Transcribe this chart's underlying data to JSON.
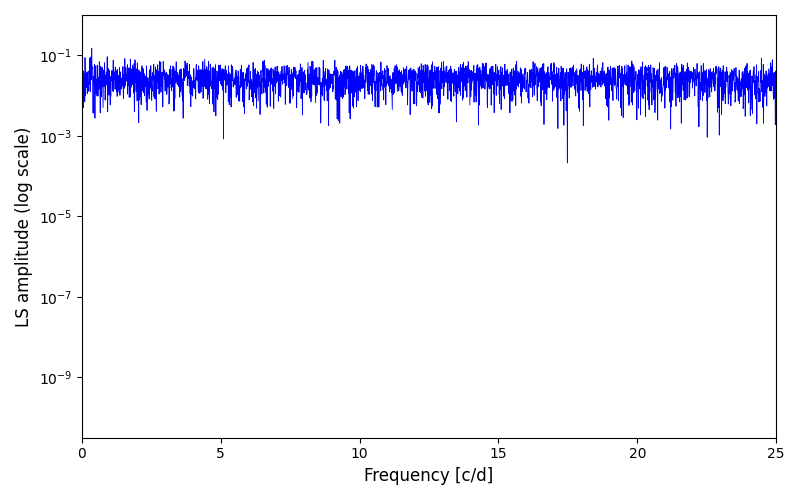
{
  "xlabel": "Frequency [c/d]",
  "ylabel": "LS amplitude (log scale)",
  "line_color": "#0000ff",
  "xlim": [
    0,
    25
  ],
  "ylim_log_min": -10.5,
  "ylim_log_max": 0,
  "freq_min": 0.001,
  "freq_max": 25.0,
  "n_freqs": 3000,
  "seed": 42,
  "background_color": "#ffffff",
  "figsize": [
    8.0,
    5.0
  ],
  "dpi": 100,
  "linewidth": 0.6,
  "xticks": [
    0,
    5,
    10,
    15,
    20,
    25
  ]
}
